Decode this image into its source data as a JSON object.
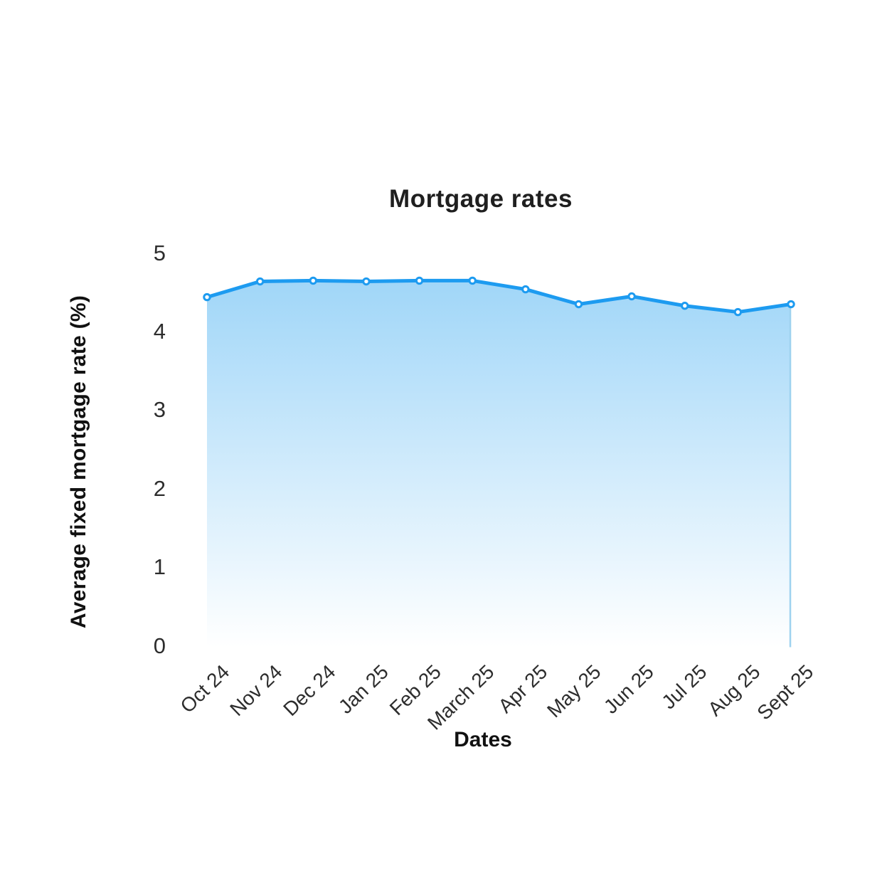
{
  "chart_data": {
    "type": "area",
    "title": "Mortgage rates",
    "xlabel": "Dates",
    "ylabel": "Average fixed mortgage rate (%)",
    "categories": [
      "Oct 24",
      "Nov 24",
      "Dec 24",
      "Jan 25",
      "Feb 25",
      "March 25",
      "Apr 25",
      "May 25",
      "Jun 25",
      "Jul 25",
      "Aug 25",
      "Sept 25"
    ],
    "series": [
      {
        "name": "Average fixed mortgage rate",
        "values": [
          4.44,
          4.64,
          4.65,
          4.64,
          4.65,
          4.65,
          4.54,
          4.35,
          4.45,
          4.33,
          4.25,
          4.35
        ]
      }
    ],
    "ylim": [
      0,
      5
    ],
    "yticks": [
      5,
      4,
      3,
      2,
      1,
      0
    ],
    "grid": false,
    "legend": false,
    "marker": "circle",
    "colors": {
      "line": "#1d9bf0",
      "marker_fill": "#ffffff",
      "fill_top": "#a0d6f8",
      "fill_bottom": "#ffffff",
      "right_edge_line": "#9ed2ef",
      "title_text": "#1f1f1f",
      "tick_text": "#2d2d2d"
    }
  }
}
